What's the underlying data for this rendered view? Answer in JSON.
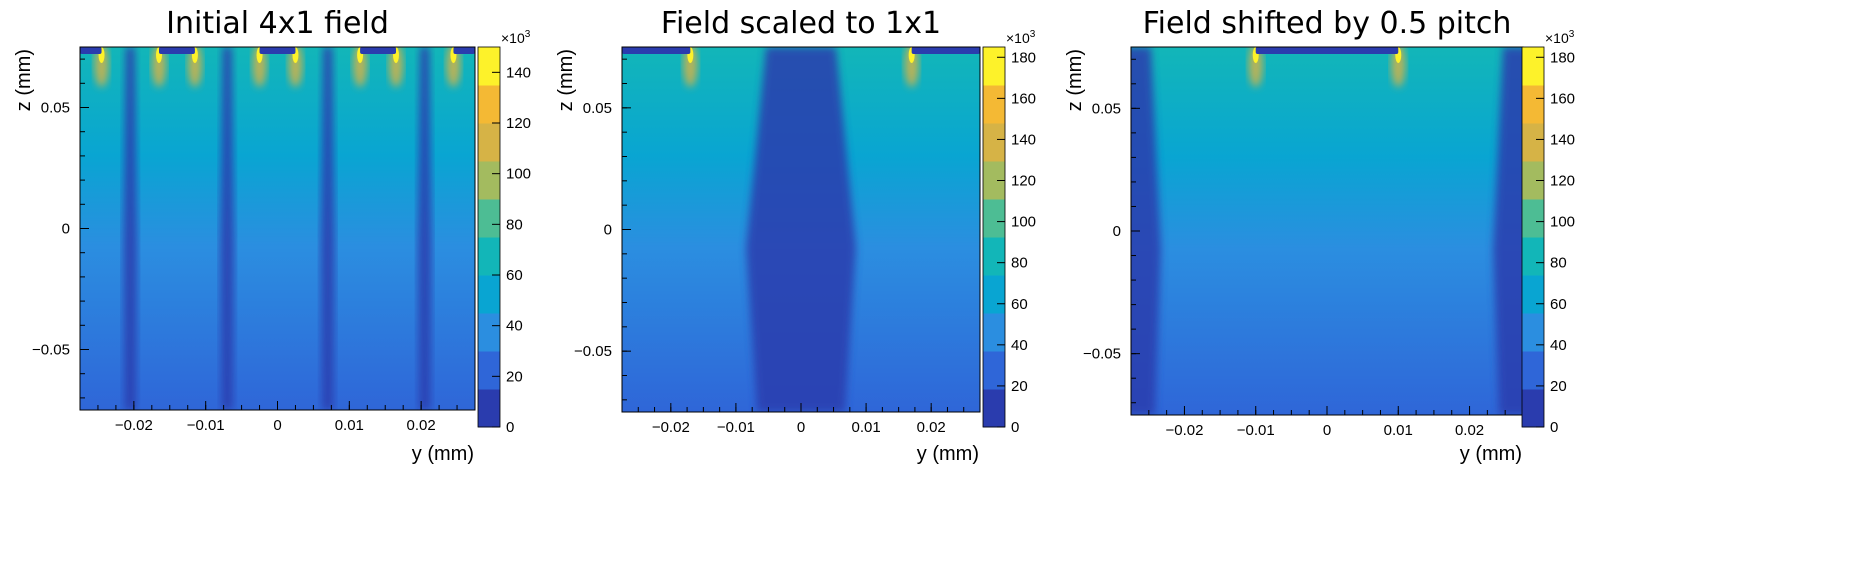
{
  "palette": {
    "dark": "#2a3cae",
    "blue": "#2f66d8",
    "mid_blue": "#2b8ee0",
    "cyan": "#09a5d2",
    "teal": "#12b6b8",
    "green": "#4dbd94",
    "olive": "#a3bb5f",
    "khaki": "#d6b346",
    "orange": "#f4b934",
    "yellow": "#fdf22a",
    "axis": "#000000"
  },
  "chart_data": [
    {
      "type": "heatmap",
      "title": "Initial 4x1 field",
      "xlabel": "y (mm)",
      "ylabel": "z (mm)",
      "xlim": [
        -0.0275,
        0.0275
      ],
      "ylim": [
        -0.075,
        0.075
      ],
      "xticks": [
        {
          "v": -0.02,
          "label": "−0.02"
        },
        {
          "v": -0.01,
          "label": "−0.01"
        },
        {
          "v": 0,
          "label": "0"
        },
        {
          "v": 0.01,
          "label": "0.01"
        },
        {
          "v": 0.02,
          "label": "0.02"
        }
      ],
      "yticks": [
        {
          "v": 0.05,
          "label": "0.05"
        },
        {
          "v": 0,
          "label": "0"
        },
        {
          "v": -0.05,
          "label": "−0.05"
        }
      ],
      "colorbar": {
        "min": 0,
        "max": 150,
        "multiplier": "×10",
        "multiplier_exp": "3",
        "ticks": [
          {
            "v": 0,
            "label": "0"
          },
          {
            "v": 20,
            "label": "20"
          },
          {
            "v": 40,
            "label": "40"
          },
          {
            "v": 60,
            "label": "60"
          },
          {
            "v": 80,
            "label": "80"
          },
          {
            "v": 100,
            "label": "100"
          },
          {
            "v": 120,
            "label": "120"
          },
          {
            "v": 140,
            "label": "140"
          }
        ]
      },
      "electrodes": [
        [
          -0.0275,
          -0.0245
        ],
        [
          -0.0165,
          -0.0115
        ],
        [
          -0.0025,
          0.0025
        ],
        [
          0.0115,
          0.0165
        ],
        [
          0.0245,
          0.0275
        ]
      ],
      "low_field_columns": [
        -0.0205,
        -0.007,
        0.007,
        0.0205
      ]
    },
    {
      "type": "heatmap",
      "title": "Field scaled to 1x1",
      "xlabel": "y (mm)",
      "ylabel": "z (mm)",
      "xlim": [
        -0.0275,
        0.0275
      ],
      "ylim": [
        -0.075,
        0.075
      ],
      "xticks": [
        {
          "v": -0.02,
          "label": "−0.02"
        },
        {
          "v": -0.01,
          "label": "−0.01"
        },
        {
          "v": 0,
          "label": "0"
        },
        {
          "v": 0.01,
          "label": "0.01"
        },
        {
          "v": 0.02,
          "label": "0.02"
        }
      ],
      "yticks": [
        {
          "v": 0.05,
          "label": "0.05"
        },
        {
          "v": 0,
          "label": "0"
        },
        {
          "v": -0.05,
          "label": "−0.05"
        }
      ],
      "colorbar": {
        "min": 0,
        "max": 185,
        "multiplier": "×10",
        "multiplier_exp": "3",
        "ticks": [
          {
            "v": 0,
            "label": "0"
          },
          {
            "v": 20,
            "label": "20"
          },
          {
            "v": 40,
            "label": "40"
          },
          {
            "v": 60,
            "label": "60"
          },
          {
            "v": 80,
            "label": "80"
          },
          {
            "v": 100,
            "label": "100"
          },
          {
            "v": 120,
            "label": "120"
          },
          {
            "v": 140,
            "label": "140"
          },
          {
            "v": 160,
            "label": "160"
          },
          {
            "v": 180,
            "label": "180"
          }
        ]
      },
      "electrodes": [
        [
          -0.0275,
          -0.017
        ],
        [
          0.017,
          0.0275
        ]
      ],
      "low_field_columns": [
        0
      ]
    },
    {
      "type": "heatmap",
      "title": "Field shifted by 0.5 pitch",
      "xlabel": "y (mm)",
      "ylabel": "z (mm)",
      "xlim": [
        -0.0275,
        0.0275
      ],
      "ylim": [
        -0.075,
        0.075
      ],
      "xticks": [
        {
          "v": -0.02,
          "label": "−0.02"
        },
        {
          "v": -0.01,
          "label": "−0.01"
        },
        {
          "v": 0,
          "label": "0"
        },
        {
          "v": 0.01,
          "label": "0.01"
        },
        {
          "v": 0.02,
          "label": "0.02"
        }
      ],
      "yticks": [
        {
          "v": 0.05,
          "label": "0.05"
        },
        {
          "v": 0,
          "label": "0"
        },
        {
          "v": -0.05,
          "label": "−0.05"
        }
      ],
      "colorbar": {
        "min": 0,
        "max": 185,
        "multiplier": "×10",
        "multiplier_exp": "3",
        "ticks": [
          {
            "v": 0,
            "label": "0"
          },
          {
            "v": 20,
            "label": "20"
          },
          {
            "v": 40,
            "label": "40"
          },
          {
            "v": 60,
            "label": "60"
          },
          {
            "v": 80,
            "label": "80"
          },
          {
            "v": 100,
            "label": "100"
          },
          {
            "v": 120,
            "label": "120"
          },
          {
            "v": 140,
            "label": "140"
          },
          {
            "v": 160,
            "label": "160"
          },
          {
            "v": 180,
            "label": "180"
          }
        ]
      },
      "electrodes": [
        [
          -0.01,
          0.01
        ]
      ],
      "low_field_columns": [
        -0.0275,
        0.0275
      ]
    }
  ]
}
